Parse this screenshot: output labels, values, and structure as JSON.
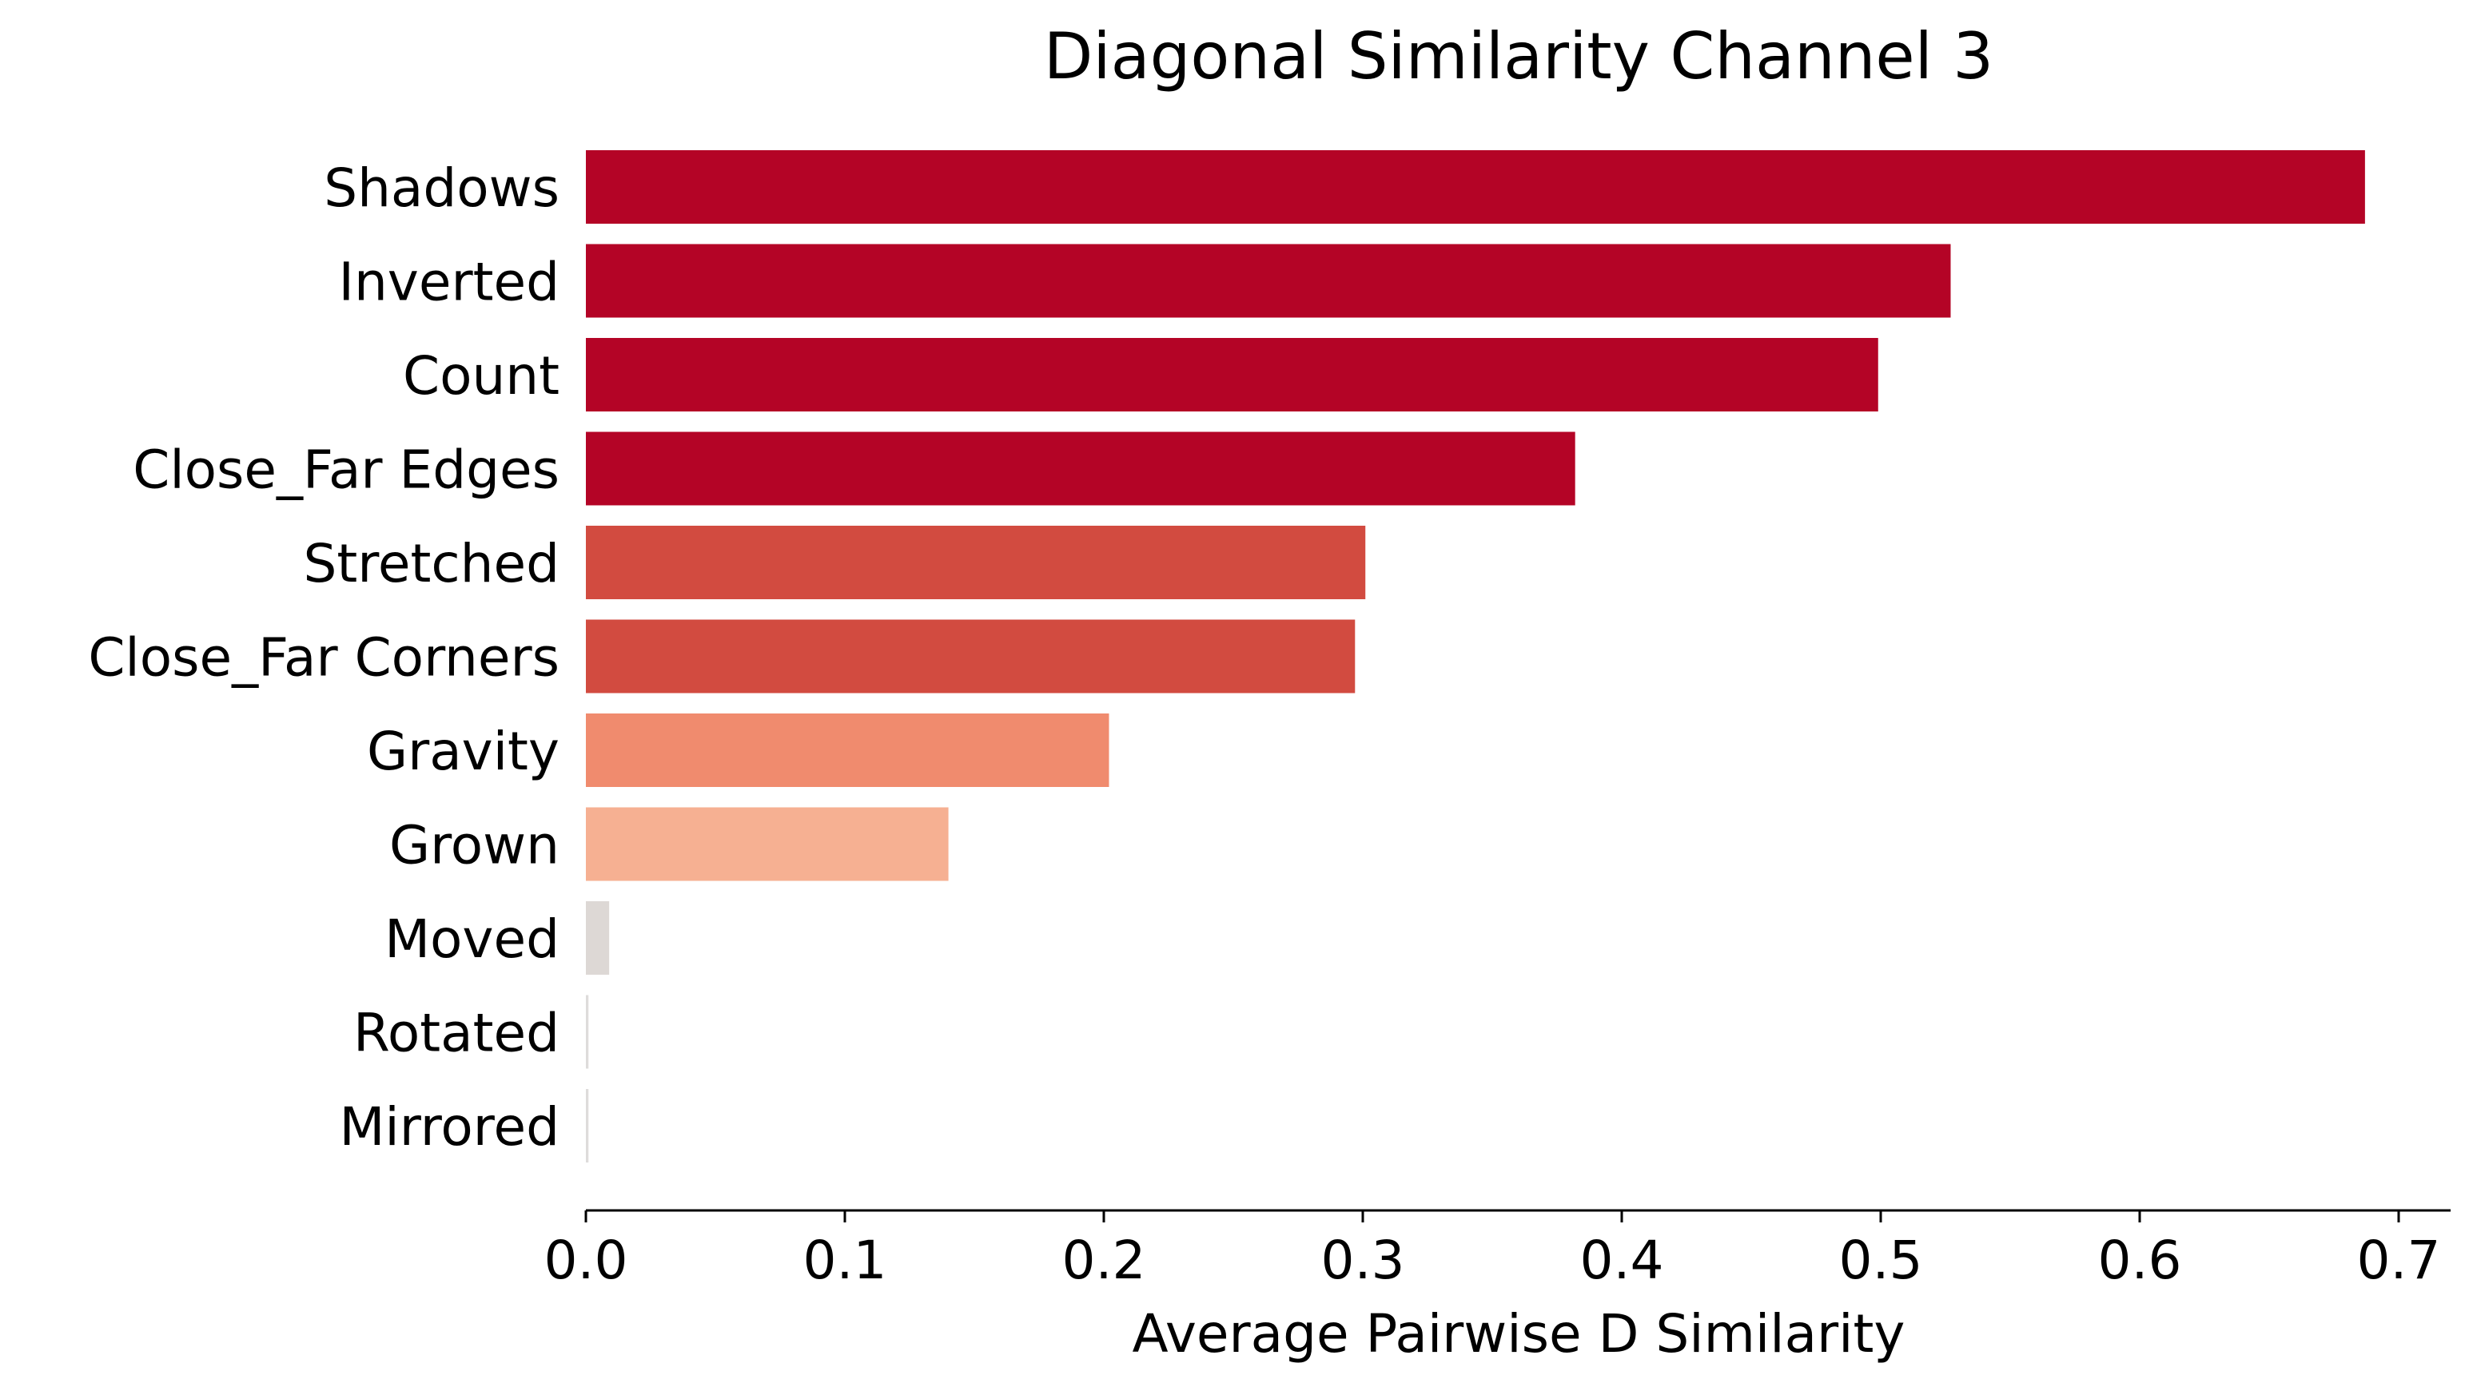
{
  "chart_data": {
    "type": "bar",
    "orientation": "horizontal",
    "title": "Diagonal Similarity Channel 3",
    "xlabel": "Average Pairwise D Similarity",
    "ylabel": "",
    "xlim": [
      0,
      0.72
    ],
    "xticks": [
      0.0,
      0.1,
      0.2,
      0.3,
      0.4,
      0.5,
      0.6,
      0.7
    ],
    "xtick_labels": [
      "0.0",
      "0.1",
      "0.2",
      "0.3",
      "0.4",
      "0.5",
      "0.6",
      "0.7"
    ],
    "grid": false,
    "categories": [
      "Shadows",
      "Inverted",
      "Count",
      "Close_Far Edges",
      "Stretched",
      "Close_Far Corners",
      "Gravity",
      "Grown",
      "Moved",
      "Rotated",
      "Mirrored"
    ],
    "values": [
      0.687,
      0.527,
      0.499,
      0.382,
      0.301,
      0.297,
      0.202,
      0.14,
      0.009,
      0.001,
      0.001
    ],
    "colors": [
      "#b40426",
      "#b40426",
      "#b40426",
      "#b40426",
      "#d24b40",
      "#d24b40",
      "#f08b6e",
      "#f6b092",
      "#ddd8d5",
      "#dedcdb",
      "#dedcdb"
    ]
  }
}
